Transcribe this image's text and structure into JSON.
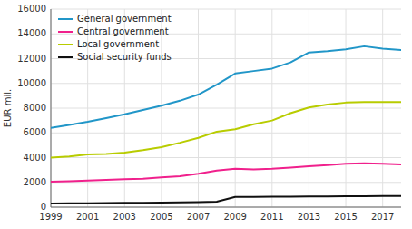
{
  "chart_data": {
    "type": "line",
    "ylabel": "EUR mil.",
    "x": [
      1999,
      2000,
      2001,
      2002,
      2003,
      2004,
      2005,
      2006,
      2007,
      2008,
      2009,
      2010,
      2011,
      2012,
      2013,
      2014,
      2015,
      2016,
      2017,
      2018
    ],
    "series": [
      {
        "name": "General government",
        "color": "#2196c8",
        "values": [
          6400,
          6650,
          6900,
          7200,
          7500,
          7850,
          8200,
          8600,
          9100,
          9900,
          10800,
          11000,
          11200,
          11700,
          12500,
          12600,
          12750,
          13000,
          12800,
          12700
        ]
      },
      {
        "name": "Central government",
        "color": "#f0208c",
        "values": [
          2050,
          2100,
          2150,
          2200,
          2250,
          2300,
          2400,
          2500,
          2700,
          2950,
          3100,
          3050,
          3100,
          3200,
          3300,
          3400,
          3500,
          3550,
          3500,
          3450
        ]
      },
      {
        "name": "Local government",
        "color": "#b8cc00",
        "values": [
          4000,
          4100,
          4250,
          4300,
          4400,
          4600,
          4850,
          5200,
          5600,
          6100,
          6300,
          6700,
          7000,
          7600,
          8050,
          8300,
          8450,
          8500,
          8500,
          8500
        ]
      },
      {
        "name": "Social security funds",
        "color": "#101010",
        "values": [
          300,
          310,
          320,
          330,
          340,
          350,
          360,
          380,
          400,
          440,
          820,
          830,
          840,
          850,
          860,
          870,
          875,
          880,
          890,
          900
        ]
      }
    ],
    "xlim": [
      1999,
      2018
    ],
    "ylim": [
      0,
      16000
    ],
    "xticks": [
      1999,
      2001,
      2003,
      2005,
      2007,
      2009,
      2011,
      2013,
      2015,
      2017
    ],
    "yticks": [
      0,
      2000,
      4000,
      6000,
      8000,
      10000,
      12000,
      14000,
      16000
    ],
    "grid": true,
    "legend": "upper left"
  }
}
